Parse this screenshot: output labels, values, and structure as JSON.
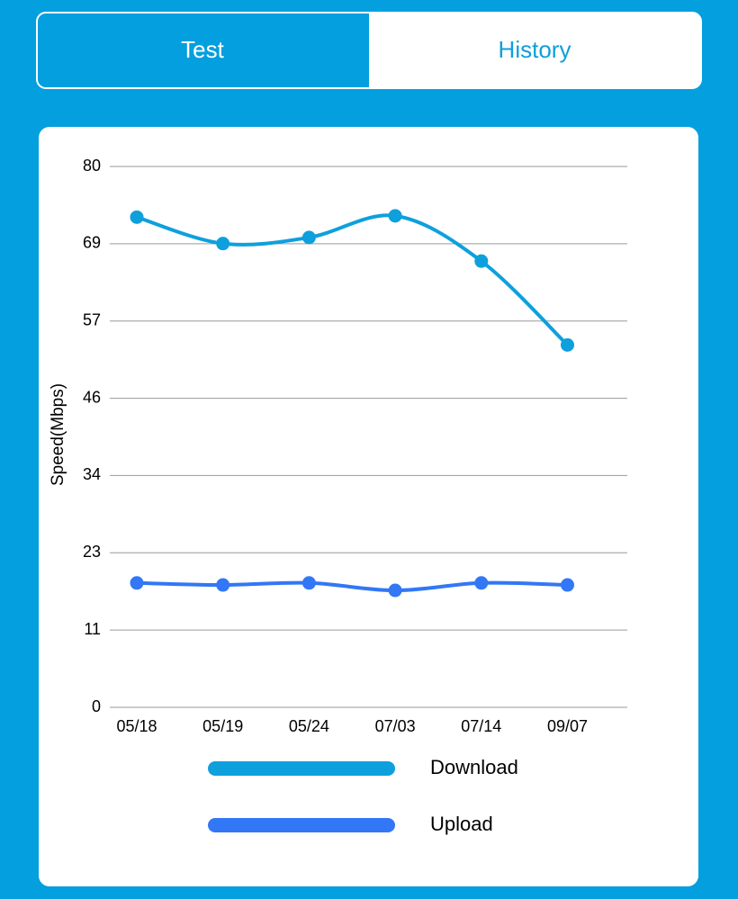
{
  "tabs": [
    "Test",
    "History"
  ],
  "chart_data": {
    "type": "line",
    "y_label": "Speed(Mbps)",
    "categories": [
      "05/18",
      "05/19",
      "05/24",
      "07/03",
      "07/14",
      "09/07"
    ],
    "series": [
      {
        "name": "Download",
        "color": "#0ea0dc",
        "values": [
          72.5,
          68.6,
          69.5,
          72.7,
          66.0,
          53.6
        ]
      },
      {
        "name": "Upload",
        "color": "#3277f5",
        "values": [
          18.4,
          18.1,
          18.4,
          17.3,
          18.4,
          18.1
        ]
      }
    ],
    "ylim": [
      0,
      80
    ],
    "yticks": [
      0,
      {
        "value": 11.43,
        "label": "11"
      },
      {
        "value": 22.86,
        "label": "23"
      },
      {
        "value": 34.29,
        "label": "34"
      },
      {
        "value": 45.71,
        "label": "46"
      },
      {
        "value": 57.14,
        "label": "57"
      },
      {
        "value": 68.57,
        "label": "69"
      },
      80
    ],
    "grid": true
  }
}
